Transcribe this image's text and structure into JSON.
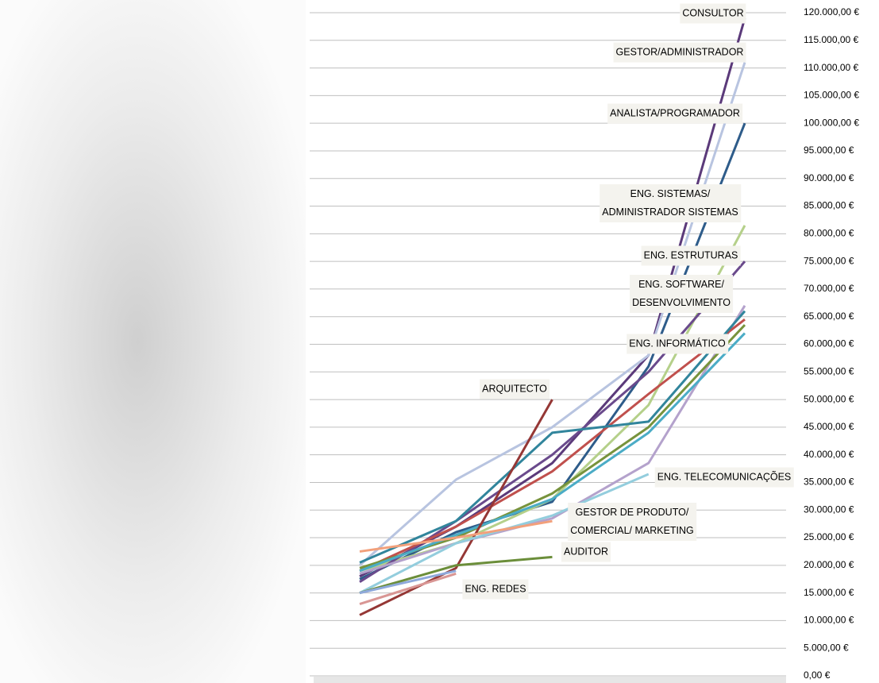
{
  "chart_data": {
    "type": "line",
    "categories": [
      null,
      null,
      null,
      null,
      null
    ],
    "ylim": [
      0,
      120000
    ],
    "yticks": [
      {
        "value": 0,
        "label": "0,00 €"
      },
      {
        "value": 5000,
        "label": "5.000,00 €"
      },
      {
        "value": 10000,
        "label": "10.000,00 €"
      },
      {
        "value": 15000,
        "label": "15.000,00 €"
      },
      {
        "value": 20000,
        "label": "20.000,00 €"
      },
      {
        "value": 25000,
        "label": "25.000,00 €"
      },
      {
        "value": 30000,
        "label": "30.000,00 €"
      },
      {
        "value": 35000,
        "label": "35.000,00 €"
      },
      {
        "value": 40000,
        "label": "40.000,00 €"
      },
      {
        "value": 45000,
        "label": "45.000,00 €"
      },
      {
        "value": 50000,
        "label": "50.000,00 €"
      },
      {
        "value": 55000,
        "label": "55.000,00 €"
      },
      {
        "value": 60000,
        "label": "60.000,00 €"
      },
      {
        "value": 65000,
        "label": "65.000,00 €"
      },
      {
        "value": 70000,
        "label": "70.000,00 €"
      },
      {
        "value": 75000,
        "label": "75.000,00 €"
      },
      {
        "value": 80000,
        "label": "80.000,00 €"
      },
      {
        "value": 85000,
        "label": "85.000,00 €"
      },
      {
        "value": 90000,
        "label": "90.000,00 €"
      },
      {
        "value": 95000,
        "label": "95.000,00 €"
      },
      {
        "value": 100000,
        "label": "100.000,00 €"
      },
      {
        "value": 105000,
        "label": "105.000,00 €"
      },
      {
        "value": 110000,
        "label": "110.000,00 €"
      },
      {
        "value": 115000,
        "label": "115.000,00 €"
      },
      {
        "value": 120000,
        "label": "120.000,00 €"
      }
    ],
    "grid": true,
    "series": [
      {
        "name": "CONSULTOR",
        "color": "#5b3a7a",
        "values": [
          18000,
          27000,
          38500,
          58000,
          119000
        ]
      },
      {
        "name": "GESTOR/ADMINISTRADOR",
        "color": "#b8c4e0",
        "values": [
          20000,
          35500,
          45000,
          58000,
          111000
        ]
      },
      {
        "name": "ANALISTA/PROGRAMADOR",
        "color": "#2e5c8a",
        "values": [
          17500,
          26000,
          31500,
          56000,
          100000
        ]
      },
      {
        "name": "ENG. SISTEMAS/\nADMINISTRADOR SISTEMAS",
        "color": "#b5d08a",
        "values": [
          19000,
          24000,
          32000,
          49000,
          81500
        ]
      },
      {
        "name": "ENG. ESTRUTURAS",
        "color": "#6a4a8c",
        "values": [
          17000,
          28000,
          40000,
          55000,
          75000
        ]
      },
      {
        "name": "ENG. SOFTWARE/\nDESENVOLVIMENTO",
        "color": "#b4a2cc",
        "values": [
          18500,
          24000,
          28500,
          38500,
          67000
        ]
      },
      {
        "name": "ENG. INFORMÁTICO",
        "color": "#c0504d",
        "values": [
          19000,
          27000,
          37000,
          51000,
          64500
        ]
      },
      {
        "color": "#77933c",
        "values": [
          19500,
          25000,
          33000,
          45000,
          63500
        ]
      },
      {
        "color": "#31859c",
        "values": [
          20500,
          28000,
          44000,
          46000,
          66000
        ]
      },
      {
        "color": "#4bacc6",
        "values": [
          19000,
          25500,
          32000,
          44000,
          62000
        ]
      },
      {
        "name": "ARQUITECTO",
        "color": "#953735",
        "values": [
          11000,
          19500,
          50000,
          null,
          null
        ]
      },
      {
        "name": "ENG. TELECOMUNICAÇÕES",
        "color": "#93cddd",
        "values": [
          15000,
          24000,
          29000,
          36500,
          null
        ]
      },
      {
        "name": "GESTOR DE PRODUTO/\nCOMERCIAL/ MARKETING",
        "color": "#f2a07b",
        "values": [
          22500,
          25000,
          28000,
          null,
          null
        ]
      },
      {
        "name": "AUDITOR",
        "color": "#6b8e3a",
        "values": [
          15000,
          20000,
          21500,
          null,
          null
        ]
      },
      {
        "name": "ENG. REDES",
        "color": "#d99694",
        "values": [
          13000,
          18500,
          null,
          null,
          null
        ]
      },
      {
        "color": "#8ea9db",
        "values": [
          15000,
          19000,
          null,
          null,
          null
        ]
      }
    ]
  }
}
